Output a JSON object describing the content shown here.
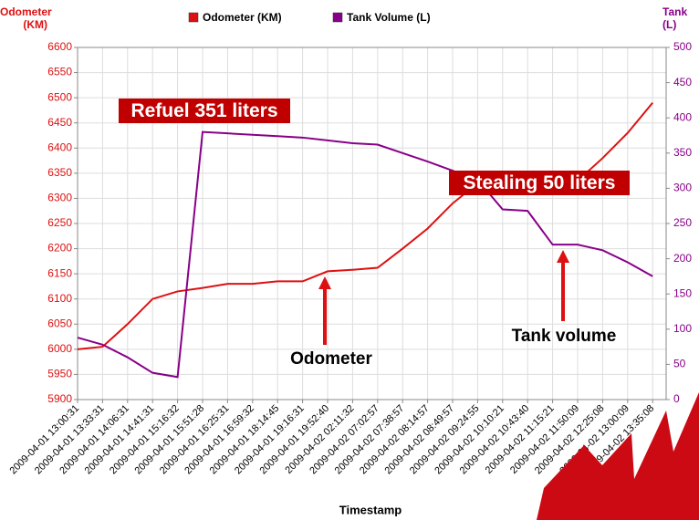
{
  "chart_data": {
    "type": "line",
    "legend": "top",
    "grid": true,
    "y_label": "Odometer (KM)",
    "y2_label": "Tank (L)",
    "x_label": "Timestamp",
    "categories": [
      "2009-04-01 13:00:31",
      "2009-04-01 13:33:31",
      "2009-04-01 14:06:31",
      "2009-04-01 14:41:31",
      "2009-04-01 15:16:32",
      "2009-04-01 15:51:28",
      "2009-04-01 16:25:31",
      "2009-04-01 16:59:32",
      "2009-04-01 18:14:45",
      "2009-04-01 19:16:31",
      "2009-04-01 19:52:40",
      "2009-04-02 02:11:32",
      "2009-04-02 07:02:57",
      "2009-04-02 07:38:57",
      "2009-04-02 08:14:57",
      "2009-04-02 08:49:57",
      "2009-04-02 09:24:55",
      "2009-04-02 10:10:21",
      "2009-04-02 10:43:40",
      "2009-04-02 11:15:21",
      "2009-04-02 11:50:09",
      "2009-04-02 12:25:08",
      "2009-04-02 13:00:09",
      "2009-04-02 13:35:08"
    ],
    "series": [
      {
        "name": "Odometer (KM)",
        "color": "#dd1111",
        "values": [
          6000,
          6005,
          6050,
          6100,
          6115,
          6122,
          6130,
          6130,
          6135,
          6135,
          6155,
          6158,
          6162,
          6200,
          6240,
          6290,
          6330,
          6335,
          6335,
          6335,
          6335,
          6380,
          6430,
          6490
        ]
      },
      {
        "name": "Tank Volume (L)",
        "color": "#880088",
        "axis": "y2",
        "values": [
          88,
          78,
          60,
          38,
          32,
          380,
          378,
          376,
          374,
          372,
          368,
          364,
          362,
          350,
          338,
          325,
          312,
          270,
          268,
          220,
          220,
          212,
          195,
          175
        ]
      }
    ],
    "ylim": [
      5900,
      6600
    ],
    "yticks": [
      5900,
      5950,
      6000,
      6050,
      6100,
      6150,
      6200,
      6250,
      6300,
      6350,
      6400,
      6450,
      6500,
      6550,
      6600
    ],
    "y2lim": [
      0,
      500
    ],
    "y2ticks": [
      0,
      50,
      100,
      150,
      200,
      250,
      300,
      350,
      400,
      450,
      500
    ],
    "annotations": [
      "Refuel 351 liters",
      "Stealing 50 liters",
      "Odometer",
      "Tank volume"
    ]
  }
}
